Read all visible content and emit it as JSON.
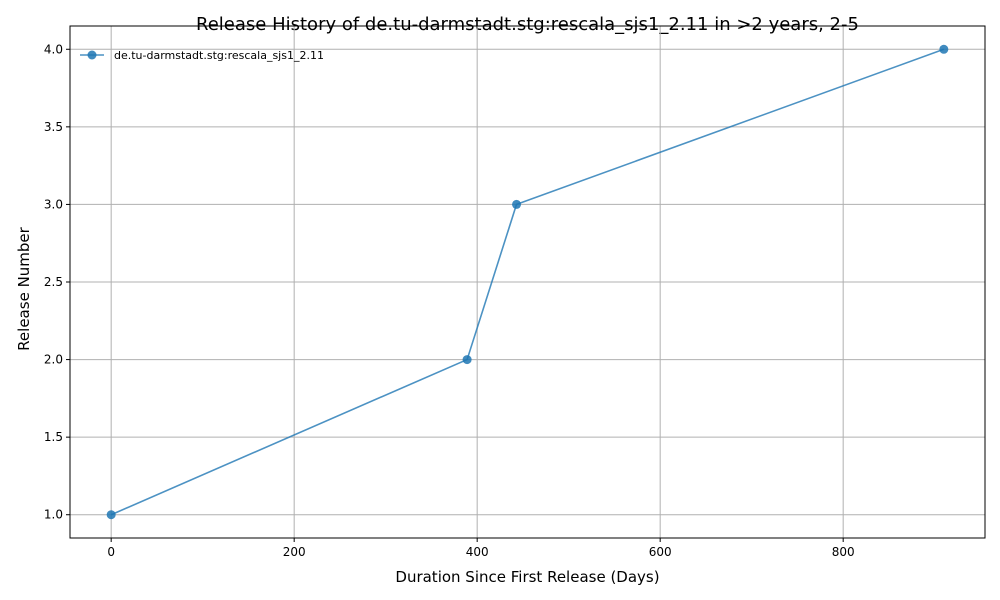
{
  "chart_data": {
    "type": "line",
    "title": "Release History of de.tu-darmstadt.stg:rescala_sjs1_2.11 in >2 years, 2-5",
    "xlabel": "Duration Since First Release (Days)",
    "ylabel": "Release Number",
    "xlim": [
      -45,
      955
    ],
    "ylim": [
      0.85,
      4.15
    ],
    "xticks": [
      0,
      200,
      400,
      600,
      800
    ],
    "xtick_labels": [
      "0",
      "200",
      "400",
      "600",
      "800"
    ],
    "yticks": [
      1.0,
      1.5,
      2.0,
      2.5,
      3.0,
      3.5,
      4.0
    ],
    "ytick_labels": [
      "1.0",
      "1.5",
      "2.0",
      "2.5",
      "3.0",
      "3.5",
      "4.0"
    ],
    "grid": true,
    "legend_position": "top-left",
    "series": [
      {
        "name": "de.tu-darmstadt.stg:rescala_sjs1_2.11",
        "color": "#1f77b4",
        "x": [
          0,
          389,
          443,
          910
        ],
        "y": [
          1,
          2,
          3,
          4
        ]
      }
    ]
  }
}
